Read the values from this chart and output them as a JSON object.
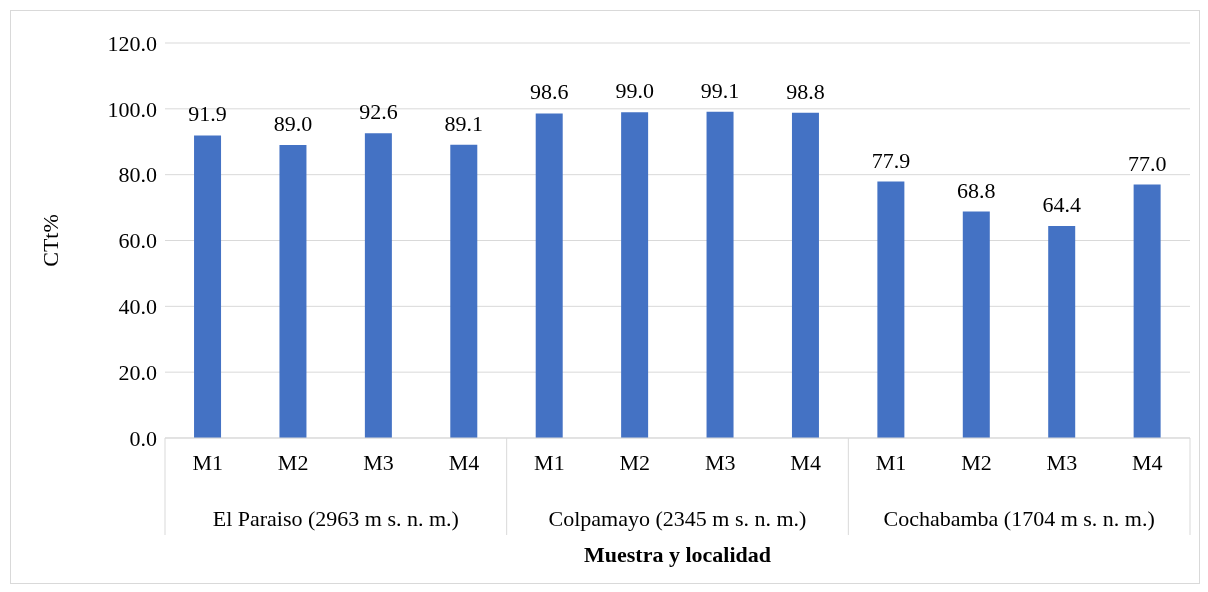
{
  "chart_data": {
    "type": "bar",
    "xlabel": "Muestra y localidad",
    "ylabel": "CTt%",
    "categories": [
      "M1",
      "M2",
      "M3",
      "M4",
      "M1",
      "M2",
      "M3",
      "M4",
      "M1",
      "M2",
      "M3",
      "M4"
    ],
    "values": [
      91.9,
      89.0,
      92.6,
      89.1,
      98.6,
      99.0,
      99.1,
      98.8,
      77.9,
      68.8,
      64.4,
      77.0
    ],
    "value_labels": [
      "91.9",
      "89.0",
      "92.6",
      "89.1",
      "98.6",
      "99.0",
      "99.1",
      "98.8",
      "77.9",
      "68.8",
      "64.4",
      "77.0"
    ],
    "color": "#4472c4",
    "ylim": [
      0,
      120
    ],
    "yticks": [
      {
        "value": 0,
        "label": "0.0"
      },
      {
        "value": 20,
        "label": "20.0"
      },
      {
        "value": 40,
        "label": "40.0"
      },
      {
        "value": 60,
        "label": "60.0"
      },
      {
        "value": 80,
        "label": "80.0"
      },
      {
        "value": 100,
        "label": "100.0"
      },
      {
        "value": 120,
        "label": "120.0"
      }
    ],
    "grid": "y",
    "annotations": [
      "El Paraiso (2963 m s. n. m.)",
      "Colpamayo (2345 m s. n. m.)",
      "Cochabamba (1704 m s. n. m.)"
    ]
  }
}
